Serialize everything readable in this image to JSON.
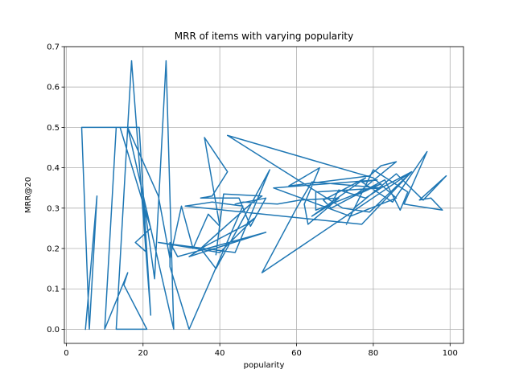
{
  "chart_data": {
    "type": "line",
    "title": "MRR of items with varying popularity",
    "xlabel": "popularity",
    "ylabel": "MRR@20",
    "xlim": [
      -0.5,
      103.5
    ],
    "ylim": [
      -0.035,
      0.7
    ],
    "xticks": [
      0,
      20,
      40,
      60,
      80,
      100
    ],
    "yticks": [
      0.0,
      0.1,
      0.2,
      0.3,
      0.4,
      0.5,
      0.6,
      0.7
    ],
    "xtick_labels": [
      "0",
      "20",
      "40",
      "60",
      "80",
      "100"
    ],
    "ytick_labels": [
      "0.0",
      "0.1",
      "0.2",
      "0.3",
      "0.4",
      "0.5",
      "0.6",
      "0.7"
    ],
    "grid": true,
    "color": "#1f77b4",
    "series": [
      {
        "x": [
          5,
          8,
          6,
          4,
          19,
          22,
          17,
          16,
          28,
          26,
          23,
          20,
          21,
          18,
          22,
          14,
          13,
          10,
          16,
          15,
          21,
          13,
          16,
          24,
          27,
          30,
          33,
          37,
          40,
          36,
          42,
          38,
          35,
          45,
          48,
          52,
          44,
          46,
          55,
          61,
          71,
          68,
          63,
          62,
          66,
          58,
          79,
          82,
          86,
          75,
          82,
          65,
          65,
          82,
          78,
          71,
          69,
          64,
          78,
          67,
          69,
          83,
          87,
          89,
          80,
          73,
          75,
          86,
          93,
          99,
          92,
          95,
          98,
          88,
          94,
          85,
          77,
          81,
          54,
          74,
          86,
          80,
          42,
          72,
          79,
          90,
          82,
          64,
          60,
          51,
          90,
          77,
          41,
          31,
          38,
          46,
          32,
          27,
          27,
          29,
          52,
          32,
          36,
          47,
          49,
          40,
          24,
          44,
          53,
          39,
          35,
          48,
          51,
          41,
          39
        ],
        "y": [
          0.0,
          0.33,
          0.0,
          0.5,
          0.5,
          0.035,
          0.665,
          0.5,
          0.0,
          0.665,
          0.125,
          0.33,
          0.19,
          0.215,
          0.25,
          0.5,
          0.5,
          0.0,
          0.14,
          0.11,
          0.0,
          0.0,
          0.5,
          0.33,
          0.175,
          0.305,
          0.2,
          0.285,
          0.255,
          0.475,
          0.39,
          0.33,
          0.325,
          0.325,
          0.255,
          0.325,
          0.31,
          0.315,
          0.31,
          0.32,
          0.325,
          0.3,
          0.26,
          0.31,
          0.4,
          0.355,
          0.38,
          0.405,
          0.415,
          0.33,
          0.36,
          0.295,
          0.34,
          0.35,
          0.325,
          0.345,
          0.31,
          0.28,
          0.375,
          0.32,
          0.3,
          0.37,
          0.295,
          0.34,
          0.395,
          0.26,
          0.3,
          0.385,
          0.32,
          0.38,
          0.32,
          0.325,
          0.295,
          0.31,
          0.44,
          0.315,
          0.365,
          0.37,
          0.35,
          0.28,
          0.325,
          0.375,
          0.48,
          0.3,
          0.29,
          0.39,
          0.35,
          0.365,
          0.3,
          0.14,
          0.39,
          0.26,
          0.295,
          0.305,
          0.315,
          0.305,
          0.0,
          0.155,
          0.215,
          0.18,
          0.24,
          0.18,
          0.205,
          0.26,
          0.275,
          0.19,
          0.215,
          0.19,
          0.395,
          0.15,
          0.2,
          0.31,
          0.33,
          0.335,
          0.185
        ]
      }
    ]
  }
}
